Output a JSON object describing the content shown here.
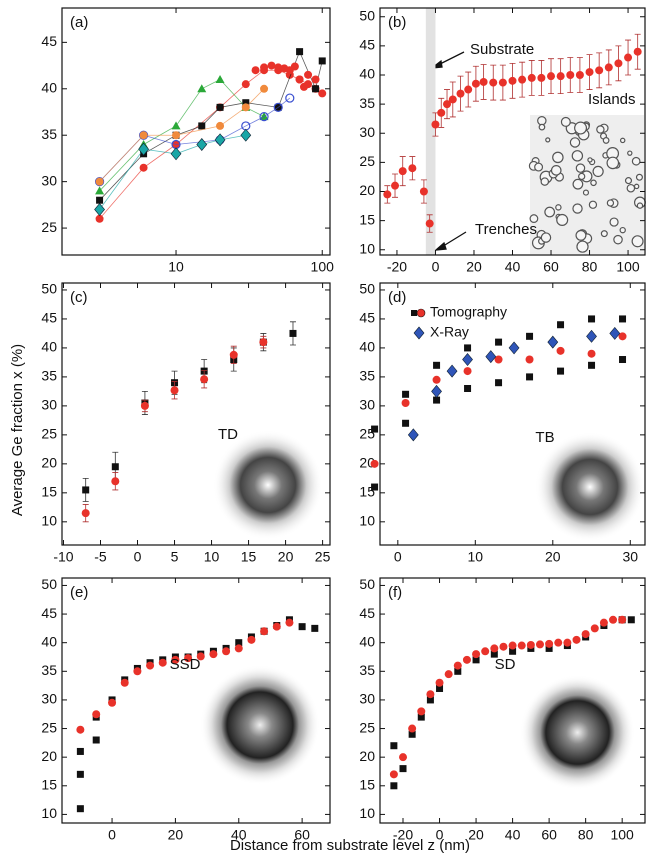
{
  "figure": {
    "ylabel": "Average Ge fraction x (%)",
    "xlabel": "Distance from substrate level z (nm)"
  },
  "chart_data": [
    {
      "type": "scatter",
      "panel_label": "(a)",
      "xscale": "log",
      "xlim": [
        1.66,
        113
      ],
      "xticks": [
        10,
        100
      ],
      "ylim": [
        22.1,
        48.7
      ],
      "yticks": [
        25,
        30,
        35,
        40,
        45
      ],
      "series": [
        {
          "color": "#e8322a",
          "marker": "circle",
          "line": true,
          "x": [
            3,
            6,
            10,
            20,
            30,
            40,
            50,
            60,
            70,
            80,
            90,
            100
          ],
          "values": [
            26,
            31.5,
            34,
            38,
            40.5,
            42,
            42,
            41.5,
            41,
            40.5,
            40,
            39.5
          ]
        },
        {
          "color": "#111111",
          "marker": "square",
          "line": true,
          "x": [
            3,
            6,
            10,
            15,
            20,
            30,
            50,
            70,
            90,
            100
          ],
          "values": [
            28,
            33,
            35,
            36,
            38,
            38.5,
            38,
            44,
            40,
            43
          ]
        },
        {
          "color": "#2aa838",
          "marker": "triangle",
          "line": true,
          "x": [
            3,
            6,
            10,
            15,
            20,
            30,
            40
          ],
          "values": [
            29,
            34,
            36,
            40,
            41,
            38,
            37
          ]
        },
        {
          "color": "#3a4fd0",
          "marker": "open",
          "line": true,
          "x": [
            3,
            6,
            10,
            20,
            30,
            40,
            50,
            60
          ],
          "values": [
            30,
            35,
            34,
            34.5,
            36,
            37,
            38,
            39
          ]
        },
        {
          "color": "#1aa6a6",
          "marker": "diamond",
          "line": true,
          "x": [
            3,
            6,
            10,
            15,
            20,
            30
          ],
          "values": [
            27,
            33.5,
            33,
            34,
            34.5,
            35
          ]
        },
        {
          "color": "#f08a3c",
          "marker": "circle",
          "line": true,
          "x": [
            3,
            6,
            10,
            20,
            30,
            40
          ],
          "values": [
            30,
            35,
            35,
            36,
            38,
            40
          ]
        },
        {
          "color": "#e8322a",
          "marker": "circle",
          "line": false,
          "x": [
            35,
            40,
            45,
            50,
            55,
            60,
            65,
            70,
            75,
            80,
            90
          ],
          "values": [
            42,
            42.3,
            42.5,
            42.3,
            42.2,
            42,
            42.4,
            41,
            40.2,
            41.5,
            41
          ]
        }
      ]
    },
    {
      "type": "scatter",
      "panel_label": "(b)",
      "xlim": [
        -28.8,
        108.8
      ],
      "xticks": [
        -20,
        0,
        20,
        40,
        60,
        80,
        100
      ],
      "ylim": [
        9.1,
        51.5
      ],
      "yticks": [
        10,
        15,
        20,
        25,
        30,
        35,
        40,
        45,
        50
      ],
      "shaded_x": [
        -5,
        0
      ],
      "annotations": [
        "Substrate",
        "Islands",
        "Trenches"
      ],
      "series": [
        {
          "color": "#e8322a",
          "marker": "circle",
          "line": false,
          "x": [
            -25,
            -21,
            -17,
            -12,
            -6,
            -3,
            0,
            3,
            6,
            9,
            13,
            17,
            21,
            25,
            30,
            35,
            40,
            45,
            50,
            55,
            60,
            65,
            70,
            75,
            80,
            85,
            90,
            95,
            100,
            105
          ],
          "values": [
            19.5,
            21,
            23.5,
            24,
            20,
            14.5,
            31.5,
            33.5,
            35,
            35.8,
            36.8,
            37.5,
            38.5,
            38.8,
            38.7,
            38.7,
            39,
            39.2,
            39.5,
            39.5,
            39.8,
            39.8,
            40,
            40,
            40.5,
            40.8,
            41.3,
            42,
            43,
            44
          ],
          "errors": [
            1.5,
            2,
            2.5,
            2,
            2,
            1.5,
            2,
            2.5,
            2.5,
            3,
            3,
            3,
            3,
            3,
            3,
            3,
            3,
            3,
            3,
            3,
            3,
            3,
            3,
            3,
            3,
            3,
            3,
            3,
            3,
            3
          ]
        }
      ]
    },
    {
      "type": "scatter",
      "panel_label": "(c)",
      "xlim": [
        -10.2,
        26
      ],
      "xticks": [
        -10,
        -5,
        0,
        5,
        10,
        15,
        20,
        25
      ],
      "ylim": [
        6,
        51.2
      ],
      "yticks": [
        10,
        15,
        20,
        25,
        30,
        35,
        40,
        45,
        50
      ],
      "annotations": [
        "TD"
      ],
      "series": [
        {
          "color": "#111111",
          "marker": "square",
          "line": false,
          "x": [
            -7,
            -3,
            1,
            5,
            9,
            13,
            17,
            21
          ],
          "values": [
            15.5,
            19.5,
            30.5,
            34,
            36,
            38,
            41,
            42.5
          ],
          "errors": [
            2,
            2.5,
            2,
            2,
            2,
            2,
            1.5,
            2
          ]
        },
        {
          "color": "#e8322a",
          "marker": "circle",
          "line": false,
          "x": [
            -7,
            -3,
            1,
            5,
            9,
            13,
            17
          ],
          "values": [
            11.5,
            17,
            30,
            32.7,
            34.6,
            38.8,
            41
          ],
          "errors": [
            1.5,
            1.5,
            1,
            1.5,
            1.5,
            1.5,
            1
          ]
        }
      ]
    },
    {
      "type": "scatter",
      "panel_label": "(d)",
      "xlim": [
        -2.3,
        31.9
      ],
      "xticks": [
        0,
        10,
        20,
        30
      ],
      "ylim": [
        6,
        51.2
      ],
      "yticks": [
        10,
        15,
        20,
        25,
        30,
        35,
        40,
        45,
        50
      ],
      "annotations": [
        "TB"
      ],
      "series": [
        {
          "color": "#111111",
          "marker": "square",
          "line": false,
          "x": [
            -3,
            -3,
            1,
            1,
            5,
            5,
            9,
            9,
            13,
            13,
            17,
            17,
            21,
            21,
            25,
            25,
            29,
            29
          ],
          "values": [
            16,
            26,
            27,
            32,
            31,
            37,
            33,
            40,
            34,
            41,
            35,
            42,
            36,
            44,
            37,
            45,
            38,
            45
          ]
        },
        {
          "name": "Tomography",
          "color": "#e8322a",
          "marker": "circle",
          "line": false,
          "x": [
            -3,
            1,
            5,
            9,
            13,
            17,
            21,
            25,
            29
          ],
          "values": [
            20,
            30.5,
            34.5,
            36,
            38,
            38,
            39.5,
            39,
            42
          ]
        },
        {
          "name": "X-Ray",
          "color": "#2f55b8",
          "marker": "diamond",
          "line": false,
          "x": [
            2,
            5,
            7,
            9,
            12,
            15,
            20,
            25,
            28
          ],
          "values": [
            25,
            32.5,
            36,
            38,
            38.5,
            40,
            41,
            42,
            42.5
          ]
        }
      ]
    },
    {
      "type": "scatter",
      "panel_label": "(e)",
      "xlim": [
        -15.8,
        68.8
      ],
      "xticks": [
        0,
        20,
        40,
        60
      ],
      "ylim": [
        8.5,
        51.3
      ],
      "yticks": [
        10,
        15,
        20,
        25,
        30,
        35,
        40,
        45,
        50
      ],
      "annotations": [
        "SSD"
      ],
      "series": [
        {
          "color": "#111111",
          "marker": "square",
          "line": false,
          "x": [
            -10,
            -10,
            -10,
            -5,
            -5,
            0,
            4,
            8,
            12,
            16,
            20,
            24,
            28,
            32,
            36,
            40,
            44,
            48,
            52,
            56,
            60,
            64
          ],
          "values": [
            11,
            17,
            21,
            23,
            27,
            30,
            33.5,
            35.5,
            36.5,
            37,
            37.5,
            37.5,
            38,
            38.5,
            39,
            40,
            41,
            42,
            43,
            44,
            42.8,
            42.5
          ]
        },
        {
          "color": "#e8322a",
          "marker": "circle",
          "line": false,
          "x": [
            -10,
            -5,
            0,
            4,
            8,
            12,
            16,
            20,
            24,
            28,
            32,
            36,
            40,
            44,
            48,
            52,
            56
          ],
          "values": [
            24.8,
            27.5,
            29.5,
            33,
            35,
            36,
            36.5,
            37,
            37.3,
            37.6,
            38,
            38.5,
            39,
            40.5,
            42,
            42.8,
            43.5
          ]
        }
      ]
    },
    {
      "type": "scatter",
      "panel_label": "(f)",
      "xlim": [
        -32.6,
        112.5
      ],
      "xticks": [
        -20,
        0,
        20,
        40,
        60,
        80,
        100
      ],
      "ylim": [
        8.5,
        51.3
      ],
      "yticks": [
        10,
        15,
        20,
        25,
        30,
        35,
        40,
        45,
        50
      ],
      "annotations": [
        "SD"
      ],
      "series": [
        {
          "color": "#111111",
          "marker": "square",
          "line": false,
          "x": [
            -25,
            -25,
            -20,
            -15,
            -10,
            -5,
            0,
            10,
            20,
            30,
            40,
            50,
            60,
            70,
            80,
            90,
            100,
            105
          ],
          "values": [
            15,
            22,
            18,
            24,
            27,
            30,
            32,
            35,
            37,
            38,
            38.5,
            39,
            39,
            39.5,
            41,
            43,
            44,
            44
          ]
        },
        {
          "color": "#e8322a",
          "marker": "circle",
          "line": false,
          "x": [
            -25,
            -20,
            -15,
            -10,
            -5,
            0,
            5,
            10,
            15,
            20,
            25,
            30,
            35,
            40,
            45,
            50,
            55,
            60,
            65,
            70,
            75,
            80,
            85,
            90,
            95,
            100
          ],
          "values": [
            17,
            20,
            25,
            28,
            31,
            33,
            34.5,
            36,
            37,
            38,
            38.5,
            39,
            39.3,
            39.5,
            39.5,
            39.6,
            39.7,
            39.8,
            40,
            40,
            40.5,
            41.5,
            42.5,
            43.5,
            44,
            44
          ]
        }
      ]
    }
  ]
}
